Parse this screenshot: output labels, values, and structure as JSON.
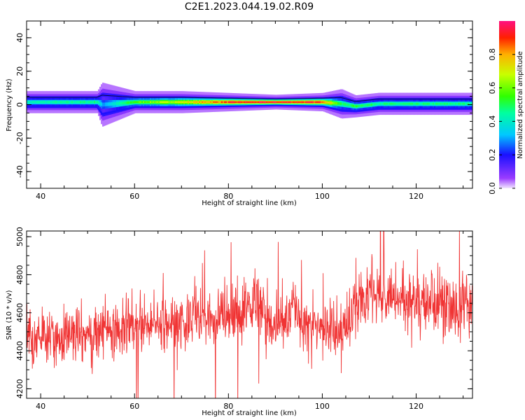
{
  "title": "C2E1.2023.044.19.02.R09",
  "chart_data": [
    {
      "type": "heatmap",
      "xlabel": "Height of straight line (km)",
      "ylabel": "Frequency (Hz)",
      "xlim": [
        37,
        132
      ],
      "ylim": [
        -50,
        50
      ],
      "xticks": [
        "40",
        "60",
        "80",
        "100",
        "120"
      ],
      "yticks": [
        "40",
        "20",
        "0",
        "-20",
        "-40"
      ],
      "colorbar": {
        "label": "Normalized spectral amplitude",
        "range": [
          0,
          1
        ],
        "ticks": [
          "0.0",
          "0.2",
          "0.4",
          "0.6",
          "0.8"
        ]
      },
      "band": [
        {
          "x": 37,
          "center_hz": 1.5,
          "halfwidth_hz": 3.0,
          "peak": 0.45
        },
        {
          "x": 52,
          "center_hz": 1.5,
          "halfwidth_hz": 3.0,
          "peak": 0.5
        },
        {
          "x": 53,
          "center_hz": 0.0,
          "halfwidth_hz": 6.0,
          "peak": 0.3
        },
        {
          "x": 60,
          "center_hz": 1.5,
          "halfwidth_hz": 3.0,
          "peak": 0.6
        },
        {
          "x": 70,
          "center_hz": 1.5,
          "halfwidth_hz": 3.0,
          "peak": 0.75
        },
        {
          "x": 80,
          "center_hz": 1.5,
          "halfwidth_hz": 2.5,
          "peak": 0.95
        },
        {
          "x": 90,
          "center_hz": 1.5,
          "halfwidth_hz": 2.0,
          "peak": 1.0
        },
        {
          "x": 100,
          "center_hz": 1.5,
          "halfwidth_hz": 2.5,
          "peak": 0.95
        },
        {
          "x": 104,
          "center_hz": 0.5,
          "halfwidth_hz": 4.0,
          "peak": 0.5
        },
        {
          "x": 107,
          "center_hz": -1.0,
          "halfwidth_hz": 3.0,
          "peak": 0.55
        },
        {
          "x": 112,
          "center_hz": 0.5,
          "halfwidth_hz": 3.0,
          "peak": 0.5
        },
        {
          "x": 132,
          "center_hz": 0.5,
          "halfwidth_hz": 3.0,
          "peak": 0.5
        }
      ]
    },
    {
      "type": "line",
      "xlabel": "Height of straight line (km)",
      "ylabel": "SNR (10 * v/v)",
      "xlim": [
        37,
        132
      ],
      "ylim": [
        4150,
        5030
      ],
      "xticks": [
        "40",
        "60",
        "80",
        "100",
        "120"
      ],
      "yticks": [
        "5000",
        "4800",
        "4600",
        "4400",
        "4200"
      ],
      "series_color": "#f03434",
      "trend": [
        {
          "x": 37,
          "mean": 4460,
          "spread": 85
        },
        {
          "x": 50,
          "mean": 4500,
          "spread": 85
        },
        {
          "x": 60,
          "mean": 4530,
          "spread": 90
        },
        {
          "x": 70,
          "mean": 4560,
          "spread": 90
        },
        {
          "x": 80,
          "mean": 4590,
          "spread": 95
        },
        {
          "x": 86,
          "mean": 4650,
          "spread": 110
        },
        {
          "x": 90,
          "mean": 4560,
          "spread": 100
        },
        {
          "x": 94,
          "mean": 4600,
          "spread": 95
        },
        {
          "x": 100,
          "mean": 4520,
          "spread": 90
        },
        {
          "x": 105,
          "mean": 4500,
          "spread": 90
        },
        {
          "x": 107,
          "mean": 4620,
          "spread": 100
        },
        {
          "x": 109,
          "mean": 4720,
          "spread": 110
        },
        {
          "x": 115,
          "mean": 4680,
          "spread": 95
        },
        {
          "x": 125,
          "mean": 4640,
          "spread": 90
        },
        {
          "x": 132,
          "mean": 4630,
          "spread": 90
        }
      ]
    }
  ]
}
